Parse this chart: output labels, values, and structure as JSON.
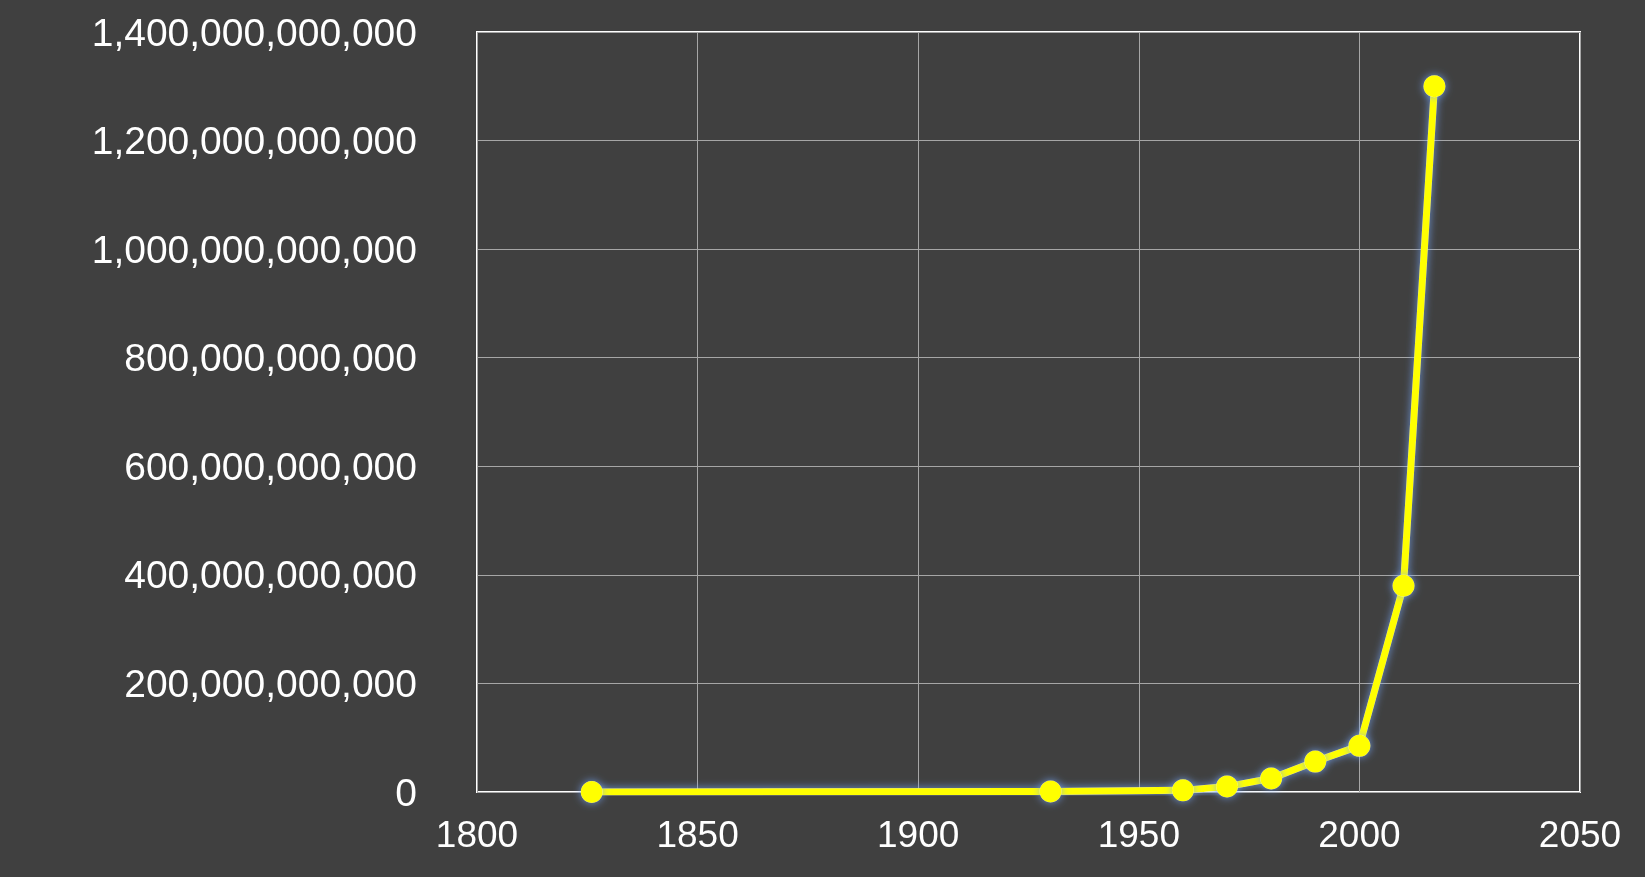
{
  "chart_data": {
    "type": "line",
    "x": [
      1826,
      1930,
      1960,
      1970,
      1980,
      1990,
      2000,
      2010,
      2017
    ],
    "series": [
      {
        "color": "#ffff00",
        "values": [
          0,
          1000000000,
          3000000000,
          10000000000,
          25000000000,
          56000000000,
          85000000000,
          380000000000,
          1300000000000
        ]
      }
    ],
    "xlim": [
      1800,
      2050
    ],
    "xticks": [
      1800,
      1850,
      1900,
      1950,
      2000,
      2050
    ],
    "ylim": [
      0,
      1400000000000
    ],
    "yticks": [
      {
        "value": 0,
        "label": "0"
      },
      {
        "value": 200000000000,
        "label": "200,000,000,000"
      },
      {
        "value": 400000000000,
        "label": "400,000,000,000"
      },
      {
        "value": 600000000000,
        "label": "600,000,000,000"
      },
      {
        "value": 800000000000,
        "label": "800,000,000,000"
      },
      {
        "value": 1000000000000,
        "label": "1,000,000,000,000"
      },
      {
        "value": 1200000000000,
        "label": "1,200,000,000,000"
      },
      {
        "value": 1400000000000,
        "label": "1,400,000,000,000"
      }
    ],
    "grid": true,
    "marker": "circle",
    "line_style": "solid"
  }
}
